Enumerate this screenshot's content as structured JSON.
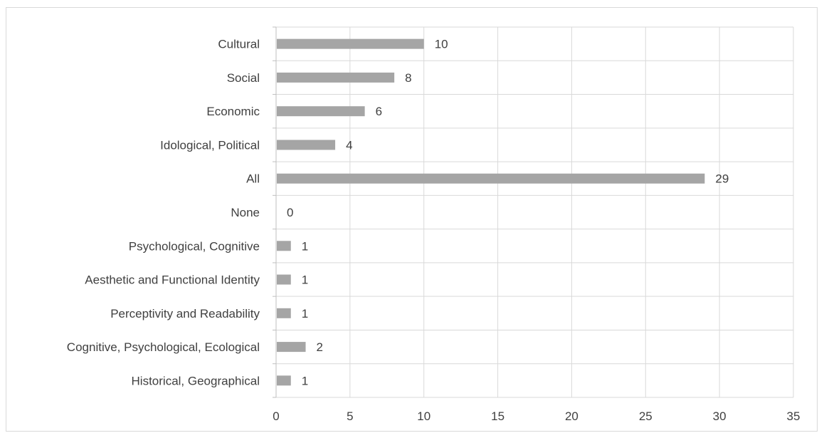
{
  "chart_data": {
    "type": "bar",
    "orientation": "horizontal",
    "categories": [
      "Cultural",
      "Social",
      "Economic",
      "Idological, Political",
      "All",
      "None",
      "Psychological, Cognitive",
      "Aesthetic and Functional Identity",
      "Perceptivity and Readability",
      "Cognitive, Psychological, Ecological",
      "Historical, Geographical"
    ],
    "values": [
      10,
      8,
      6,
      4,
      29,
      0,
      1,
      1,
      1,
      2,
      1
    ],
    "xlim": [
      0,
      35
    ],
    "xticks": [
      0,
      5,
      10,
      15,
      20,
      25,
      30,
      35
    ],
    "grid": true,
    "data_labels": true,
    "bar_color": "#a5a5a5",
    "grid_color": "#d9d9d9",
    "title": "",
    "xlabel": "",
    "ylabel": ""
  }
}
